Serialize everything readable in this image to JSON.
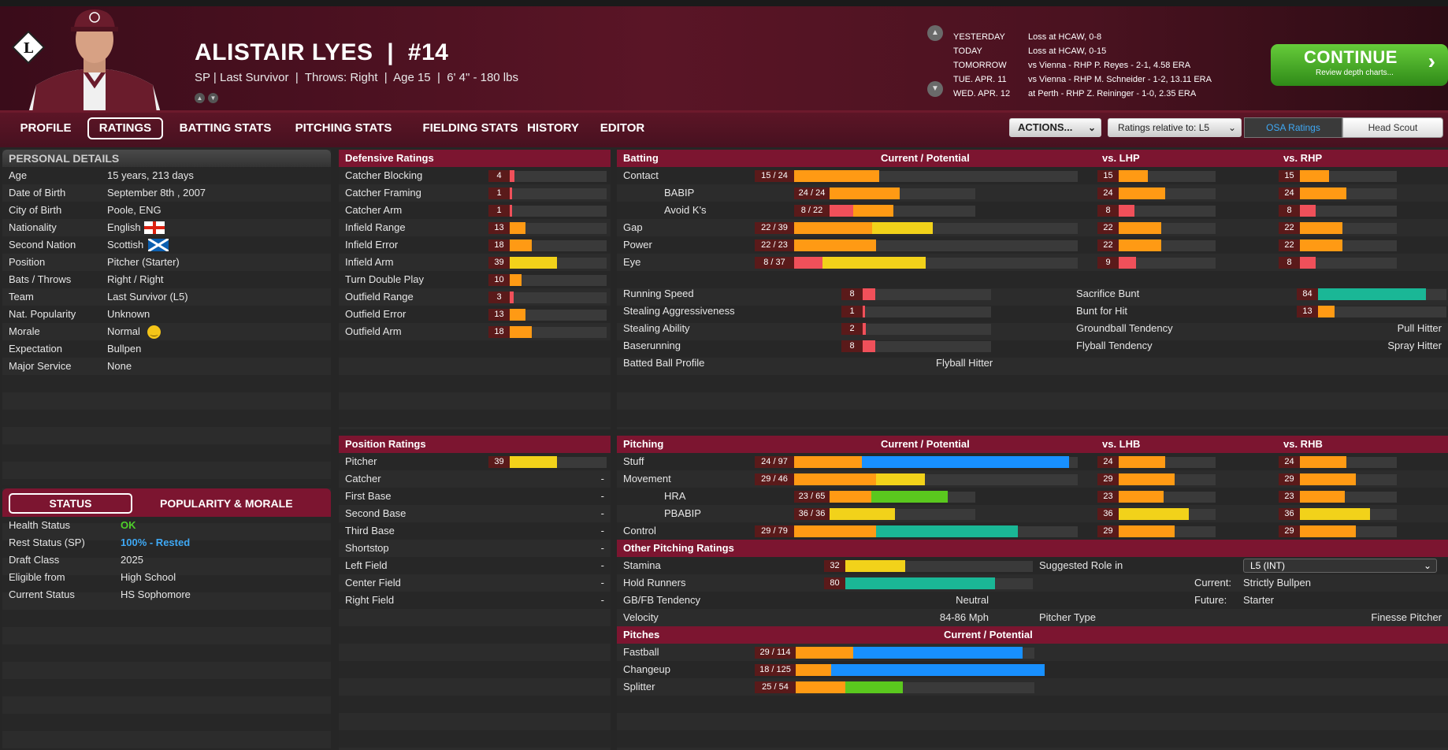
{
  "header": {
    "name": "ALISTAIR LYES",
    "number": "#14",
    "sub_position": "SP",
    "sub_team": "Last Survivor",
    "sub_throws": "Throws: Right",
    "sub_age": "Age 15",
    "sub_size": "6' 4\" - 180 lbs",
    "logo_letter": "L"
  },
  "schedule": [
    {
      "day": "YESTERDAY",
      "info": "Loss at HCAW, 0-8"
    },
    {
      "day": "TODAY",
      "info": "Loss at HCAW, 0-15"
    },
    {
      "day": "TOMORROW",
      "info": "vs Vienna - RHP P. Reyes - 2-1, 4.58 ERA"
    },
    {
      "day": "TUE. APR. 11",
      "info": "vs Vienna - RHP M. Schneider - 1-2, 13.11 ERA"
    },
    {
      "day": "WED. APR. 12",
      "info": "at Perth - RHP Z. Reininger - 1-0, 2.35 ERA"
    }
  ],
  "continue": {
    "label": "CONTINUE",
    "sub": "Review depth charts..."
  },
  "nav": {
    "tabs": [
      "PROFILE",
      "RATINGS",
      "BATTING STATS",
      "PITCHING STATS",
      "FIELDING STATS",
      "HISTORY",
      "EDITOR"
    ],
    "actions": "ACTIONS...",
    "relative": "Ratings relative to: L5",
    "osa": "OSA Ratings",
    "head_scout": "Head Scout"
  },
  "personal": {
    "title": "PERSONAL DETAILS",
    "rows": [
      [
        "Age",
        "15 years, 213 days"
      ],
      [
        "Date of Birth",
        "September 8th , 2007"
      ],
      [
        "City of Birth",
        "Poole, ENG"
      ],
      [
        "Nationality",
        "English"
      ],
      [
        "Second Nation",
        "Scottish"
      ],
      [
        "Position",
        "Pitcher (Starter)"
      ],
      [
        "Bats / Throws",
        "Right / Right"
      ],
      [
        "Team",
        "Last Survivor (L5)"
      ],
      [
        "Nat. Popularity",
        "Unknown"
      ],
      [
        "Morale",
        "Normal"
      ],
      [
        "Expectation",
        "Bullpen"
      ],
      [
        "Major Service",
        "None"
      ]
    ]
  },
  "status": {
    "tab1": "STATUS",
    "tab2": "POPULARITY & MORALE",
    "rows": [
      [
        "Health Status",
        "OK"
      ],
      [
        "Rest Status (SP)",
        "100% - Rested"
      ],
      [
        "Draft Class",
        "2025"
      ],
      [
        "Eligible from",
        "High School"
      ],
      [
        "Current Status",
        "HS Sophomore"
      ]
    ]
  },
  "defensive": {
    "title": "Defensive Ratings",
    "rows": [
      {
        "label": "Catcher Blocking",
        "value": "4",
        "fill": 4,
        "color": "#f0505a"
      },
      {
        "label": "Catcher Framing",
        "value": "1",
        "fill": 1,
        "color": "#f0505a"
      },
      {
        "label": "Catcher Arm",
        "value": "1",
        "fill": 1,
        "color": "#f0505a"
      },
      {
        "label": "Infield Range",
        "value": "13",
        "fill": 13,
        "color": "#ff9a14"
      },
      {
        "label": "Infield Error",
        "value": "18",
        "fill": 18,
        "color": "#ff9a14"
      },
      {
        "label": "Infield Arm",
        "value": "39",
        "fill": 39,
        "color": "#f2d21a"
      },
      {
        "label": "Turn Double Play",
        "value": "10",
        "fill": 10,
        "color": "#ff9a14"
      },
      {
        "label": "Outfield Range",
        "value": "3",
        "fill": 3,
        "color": "#f0505a"
      },
      {
        "label": "Outfield Error",
        "value": "13",
        "fill": 13,
        "color": "#ff9a14"
      },
      {
        "label": "Outfield Arm",
        "value": "18",
        "fill": 18,
        "color": "#ff9a14"
      }
    ]
  },
  "position": {
    "title": "Position Ratings",
    "rows": [
      {
        "label": "Pitcher",
        "value": "39"
      },
      {
        "label": "Catcher",
        "value": "-"
      },
      {
        "label": "First Base",
        "value": "-"
      },
      {
        "label": "Second Base",
        "value": "-"
      },
      {
        "label": "Third Base",
        "value": "-"
      },
      {
        "label": "Shortstop",
        "value": "-"
      },
      {
        "label": "Left Field",
        "value": "-"
      },
      {
        "label": "Center Field",
        "value": "-"
      },
      {
        "label": "Right Field",
        "value": "-"
      }
    ]
  },
  "batting": {
    "title": "Batting",
    "cp": "Current / Potential",
    "vl": "vs. LHP",
    "vr": "vs. RHP",
    "rows": [
      {
        "label": "Contact",
        "cp": "15 / 24",
        "cur": 15,
        "pot": 24,
        "ccol": "#ff9a14",
        "pcol": "#ff9a14",
        "vl": "15",
        "vr": "15",
        "lcol": "#ff9a14",
        "indent": false
      },
      {
        "label": "BABIP",
        "cp": "24 / 24",
        "cur": 24,
        "pot": 24,
        "ccol": "#ff9a14",
        "pcol": "#ff9a14",
        "vl": "24",
        "vr": "24",
        "lcol": "#ff9a14",
        "indent": true
      },
      {
        "label": "Avoid K's",
        "cp": "8 / 22",
        "cur": 8,
        "pot": 22,
        "ccol": "#f0505a",
        "pcol": "#ff9a14",
        "vl": "8",
        "vr": "8",
        "lcol": "#f0505a",
        "indent": true
      },
      {
        "label": "Gap",
        "cp": "22 / 39",
        "cur": 22,
        "pot": 39,
        "ccol": "#ff9a14",
        "pcol": "#f2d21a",
        "vl": "22",
        "vr": "22",
        "lcol": "#ff9a14",
        "indent": false
      },
      {
        "label": "Power",
        "cp": "22 / 23",
        "cur": 22,
        "pot": 23,
        "ccol": "#ff9a14",
        "pcol": "#ff9a14",
        "vl": "22",
        "vr": "22",
        "lcol": "#ff9a14",
        "indent": false
      },
      {
        "label": "Eye",
        "cp": "8 / 37",
        "cur": 8,
        "pot": 37,
        "ccol": "#f0505a",
        "pcol": "#f2d21a",
        "vl": "9",
        "vr": "8",
        "lcol": "#f0505a",
        "indent": false
      }
    ],
    "running": [
      {
        "label": "Running Speed",
        "value": "8",
        "fill": 8,
        "color": "#f0505a"
      },
      {
        "label": "Stealing Aggressiveness",
        "value": "1",
        "fill": 1,
        "color": "#f0505a"
      },
      {
        "label": "Stealing Ability",
        "value": "2",
        "fill": 2,
        "color": "#f0505a"
      },
      {
        "label": "Baserunning",
        "value": "8",
        "fill": 8,
        "color": "#f0505a"
      }
    ],
    "profile_label": "Batted Ball Profile",
    "profile_value": "Flyball Hitter",
    "other": [
      {
        "label": "Sacrifice Bunt",
        "value": "84",
        "fill": 84,
        "color": "#1ab796"
      },
      {
        "label": "Bunt for Hit",
        "value": "13",
        "fill": 13,
        "color": "#ff9a14"
      },
      {
        "label": "Groundball Tendency",
        "text": "Pull Hitter"
      },
      {
        "label": "Flyball Tendency",
        "text": "Spray Hitter"
      }
    ]
  },
  "pitching": {
    "title": "Pitching",
    "cp": "Current / Potential",
    "vl": "vs. LHB",
    "vr": "vs. RHB",
    "rows": [
      {
        "label": "Stuff",
        "cp": "24 / 97",
        "cur": 24,
        "pot": 97,
        "ccol": "#ff9a14",
        "pcol": "#1890ff",
        "vl": "24",
        "vr": "24",
        "lcol": "#ff9a14",
        "indent": false
      },
      {
        "label": "Movement",
        "cp": "29 / 46",
        "cur": 29,
        "pot": 46,
        "ccol": "#ff9a14",
        "pcol": "#f2d21a",
        "vl": "29",
        "vr": "29",
        "lcol": "#ff9a14",
        "indent": false
      },
      {
        "label": "HRA",
        "cp": "23 / 65",
        "cur": 23,
        "pot": 65,
        "ccol": "#ff9a14",
        "pcol": "#5ac81e",
        "vl": "23",
        "vr": "23",
        "lcol": "#ff9a14",
        "indent": true
      },
      {
        "label": "PBABIP",
        "cp": "36 / 36",
        "cur": 36,
        "pot": 36,
        "ccol": "#f2d21a",
        "pcol": "#f2d21a",
        "vl": "36",
        "vr": "36",
        "lcol": "#f2d21a",
        "indent": true
      },
      {
        "label": "Control",
        "cp": "29 / 79",
        "cur": 29,
        "pot": 79,
        "ccol": "#ff9a14",
        "pcol": "#1ab796",
        "vl": "29",
        "vr": "29",
        "lcol": "#ff9a14",
        "indent": false
      }
    ],
    "other_title": "Other Pitching Ratings",
    "stamina": {
      "label": "Stamina",
      "value": "32",
      "fill": 32,
      "color": "#f2d21a"
    },
    "hold": {
      "label": "Hold Runners",
      "value": "80",
      "fill": 80,
      "color": "#1ab796"
    },
    "gbfb": {
      "label": "GB/FB Tendency",
      "value": "Neutral"
    },
    "velocity": {
      "label": "Velocity",
      "value": "84-86 Mph"
    },
    "role_label": "Suggested Role in",
    "role_select": "L5 (INT)",
    "current_label": "Current:",
    "current_value": "Strictly Bullpen",
    "future_label": "Future:",
    "future_value": "Starter",
    "type_label": "Pitcher Type",
    "type_value": "Finesse Pitcher"
  },
  "pitches": {
    "title": "Pitches",
    "cp": "Current / Potential",
    "rows": [
      {
        "label": "Fastball",
        "cp": "29 / 114",
        "cur": 29,
        "pot": 114,
        "ccol": "#ff9a14",
        "pcol": "#1890ff"
      },
      {
        "label": "Changeup",
        "cp": "18 / 125",
        "cur": 18,
        "pot": 125,
        "ccol": "#ff9a14",
        "pcol": "#1890ff"
      },
      {
        "label": "Splitter",
        "cp": "25 / 54",
        "cur": 25,
        "pot": 54,
        "ccol": "#ff9a14",
        "pcol": "#5ac81e"
      }
    ]
  }
}
